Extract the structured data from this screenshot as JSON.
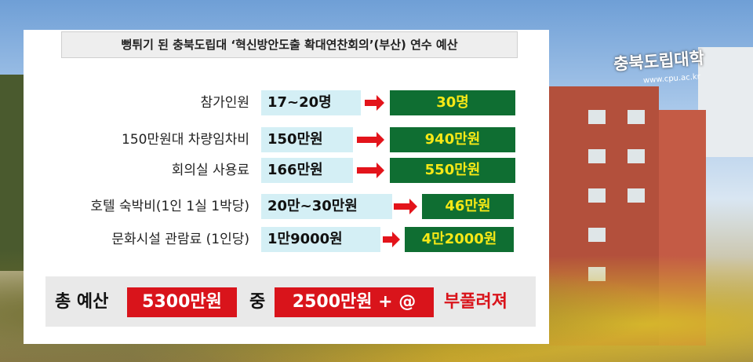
{
  "photo": {
    "sign": "충북도립대학",
    "url": "www.cpu.ac.kr"
  },
  "title": "뻥튀기 된 충북도립대 ‘혁신방안도출 확대연찬회의’(부산) 연수 예산",
  "rows": [
    {
      "label": "참가인원",
      "before": "17~20명",
      "after": "30명"
    },
    {
      "label": "150만원대 차량임차비",
      "before": "150만원",
      "after": "940만원"
    },
    {
      "label": "회의실 사용료",
      "before": "166만원",
      "after": "550만원"
    },
    {
      "label": "호텔 숙박비(1인 1실 1박당)",
      "before": "20만~30만원",
      "after": "46만원"
    },
    {
      "label": "문화시설 관람료 (1인당)",
      "before": "1만9000원",
      "after": "4만2000원"
    }
  ],
  "summary": {
    "lead": "총 예산",
    "total": "5300만원",
    "middle": "중",
    "inflated": "2500만원 + @",
    "tail": "부풀려져"
  }
}
